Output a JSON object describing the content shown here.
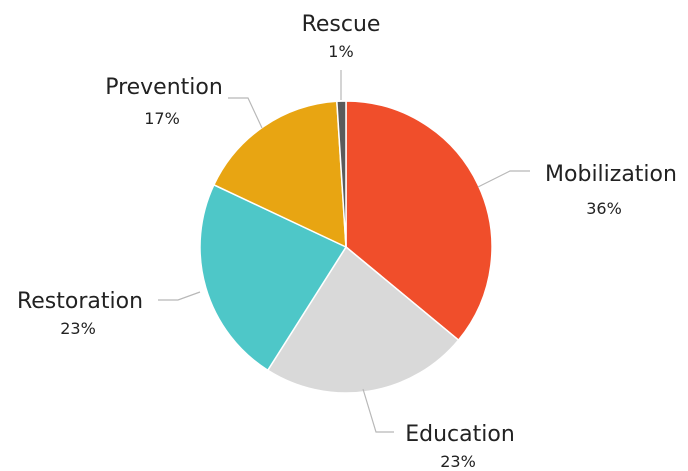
{
  "chart_data": {
    "type": "pie",
    "slices": [
      {
        "label": "Mobilization",
        "value": 36,
        "value_label": "36%",
        "color": "#F04E2B"
      },
      {
        "label": "Education",
        "value": 23,
        "value_label": "23%",
        "color": "#D9D9D9"
      },
      {
        "label": "Restoration",
        "value": 23,
        "value_label": "23%",
        "color": "#4EC7C8"
      },
      {
        "label": "Prevention",
        "value": 17,
        "value_label": "17%",
        "color": "#E8A512"
      },
      {
        "label": "Rescue",
        "value": 1,
        "value_label": "1%",
        "color": "#5B5B5B"
      }
    ],
    "start_angle": "top",
    "direction": "clockwise",
    "title": "",
    "legend": "none"
  }
}
